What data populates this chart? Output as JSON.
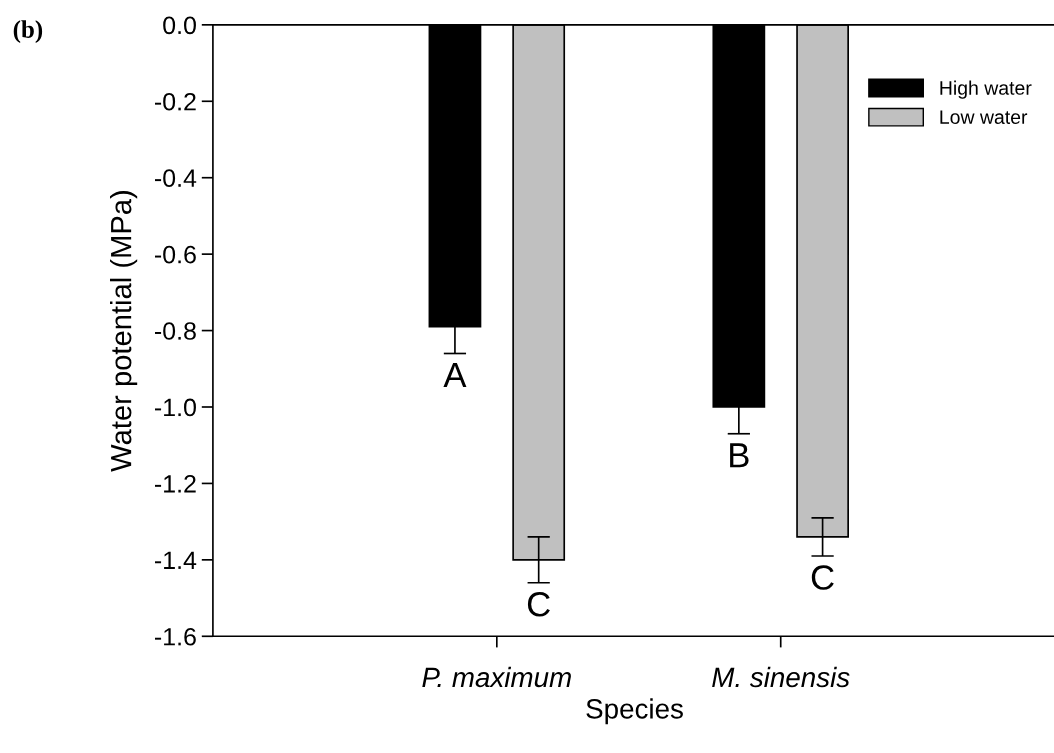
{
  "chart_data": {
    "type": "bar",
    "xlabel": "Species",
    "ylabel": "Water potential (MPa)",
    "categories": [
      "P. maximum",
      "M. sinensis"
    ],
    "series": [
      {
        "name": "High water",
        "color": "#000000",
        "values": [
          -0.79,
          -1.0
        ],
        "errors": [
          0.07,
          0.07
        ],
        "value_labels": [
          "A",
          "B"
        ]
      },
      {
        "name": "Low water",
        "color": "#c0c0c0",
        "values": [
          -1.4,
          -1.34
        ],
        "errors": [
          0.06,
          0.05
        ],
        "value_labels": [
          "C",
          "C"
        ]
      }
    ],
    "ylim": [
      -1.6,
      0
    ],
    "yticks": [
      {
        "value": 0,
        "label": "0.0"
      },
      {
        "value": -0.2,
        "label": "-0.2"
      },
      {
        "value": -0.4,
        "label": "-0.4"
      },
      {
        "value": -0.6,
        "label": "-0.6"
      },
      {
        "value": -0.8,
        "label": "-0.8"
      },
      {
        "value": -1.0,
        "label": "-1.0"
      },
      {
        "value": -1.2,
        "label": "-1.2"
      },
      {
        "value": -1.4,
        "label": "-1.4"
      },
      {
        "value": -1.6,
        "label": "-1.6"
      }
    ],
    "grid": false,
    "legend": "top right",
    "annotations": [
      "(b)"
    ]
  }
}
